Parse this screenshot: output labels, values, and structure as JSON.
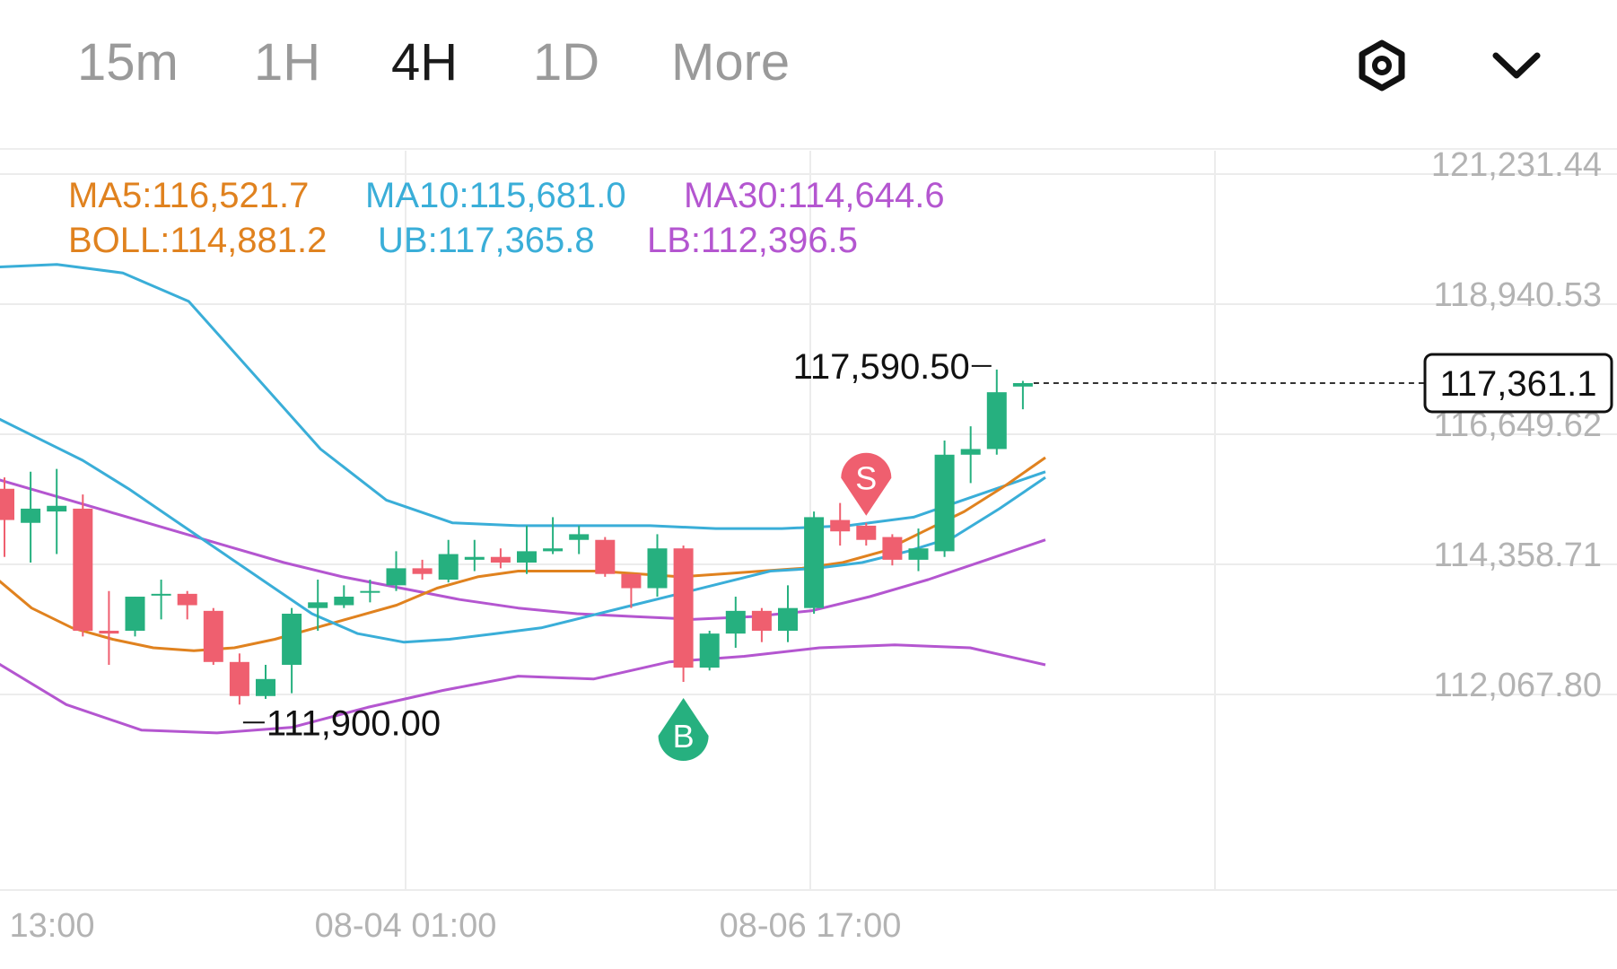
{
  "tabs": [
    {
      "label": "15m",
      "active": false
    },
    {
      "label": "1H",
      "active": false
    },
    {
      "label": "4H",
      "active": true
    },
    {
      "label": "1D",
      "active": false
    },
    {
      "label": "More",
      "active": false
    }
  ],
  "icons": {
    "settings": "gear-hexagon-icon",
    "expand": "chevron-down-icon"
  },
  "legend": {
    "ma5": "MA5:116,521.7",
    "ma10": "MA10:115,681.0",
    "ma30": "MA30:114,644.6",
    "boll": "BOLL:114,881.2",
    "ub": "UB:117,365.8",
    "lb": "LB:112,396.5"
  },
  "colors": {
    "up": "#26b07f",
    "down": "#ef5f6f",
    "ma5": "#e0821f",
    "ma10": "#3aaed8",
    "ma30": "#b456d0",
    "axis_text": "#b3b3b3",
    "grid": "#ececec"
  },
  "chart_data": {
    "type": "candlestick",
    "y_ticks": [
      "121,231.44",
      "118,940.53",
      "116,649.62",
      "114,358.71",
      "112,067.80"
    ],
    "y_tick_values": [
      121231.44,
      118940.53,
      116649.62,
      114358.71,
      112067.8
    ],
    "x_ticks": [
      "13:00",
      "08-04 01:00",
      "08-06 17:00"
    ],
    "current_price": "117,361.1",
    "current_price_value": 117361.1,
    "high_label": "117,590.50",
    "low_label": "111,900.00",
    "signals": [
      {
        "label": "S",
        "type": "sell",
        "candle_index": 33
      },
      {
        "label": "B",
        "type": "buy",
        "candle_index": 26
      }
    ],
    "candles": [
      {
        "o": 115500,
        "c": 114950,
        "h": 115700,
        "l": 114300
      },
      {
        "o": 114900,
        "c": 115150,
        "h": 115800,
        "l": 114200
      },
      {
        "o": 115100,
        "c": 115200,
        "h": 115850,
        "l": 114350
      },
      {
        "o": 115150,
        "c": 113000,
        "h": 115400,
        "l": 112900
      },
      {
        "o": 113000,
        "c": 112950,
        "h": 113700,
        "l": 112400
      },
      {
        "o": 113000,
        "c": 113600,
        "h": 113600,
        "l": 112900
      },
      {
        "o": 113650,
        "c": 113650,
        "h": 113900,
        "l": 113200
      },
      {
        "o": 113650,
        "c": 113450,
        "h": 113700,
        "l": 113200
      },
      {
        "o": 113350,
        "c": 112450,
        "h": 113400,
        "l": 112400
      },
      {
        "o": 112450,
        "c": 111850,
        "h": 112600,
        "l": 111700
      },
      {
        "o": 111850,
        "c": 112150,
        "h": 112400,
        "l": 111800
      },
      {
        "o": 112400,
        "c": 113300,
        "h": 113400,
        "l": 111900
      },
      {
        "o": 113400,
        "c": 113500,
        "h": 113900,
        "l": 113000
      },
      {
        "o": 113450,
        "c": 113600,
        "h": 113800,
        "l": 113400
      },
      {
        "o": 113700,
        "c": 113700,
        "h": 113900,
        "l": 113500
      },
      {
        "o": 113800,
        "c": 114100,
        "h": 114400,
        "l": 113700
      },
      {
        "o": 114100,
        "c": 114000,
        "h": 114250,
        "l": 113900
      },
      {
        "o": 113900,
        "c": 114350,
        "h": 114600,
        "l": 113850
      },
      {
        "o": 114250,
        "c": 114300,
        "h": 114600,
        "l": 114050
      },
      {
        "o": 114300,
        "c": 114200,
        "h": 114450,
        "l": 114100
      },
      {
        "o": 114200,
        "c": 114400,
        "h": 114850,
        "l": 114000
      },
      {
        "o": 114400,
        "c": 114450,
        "h": 115000,
        "l": 114350
      },
      {
        "o": 114600,
        "c": 114700,
        "h": 114850,
        "l": 114350
      },
      {
        "o": 114600,
        "c": 114000,
        "h": 114650,
        "l": 113950
      },
      {
        "o": 114000,
        "c": 113750,
        "h": 114000,
        "l": 113400
      },
      {
        "o": 113750,
        "c": 114450,
        "h": 114700,
        "l": 113600
      },
      {
        "o": 114450,
        "c": 112350,
        "h": 114500,
        "l": 112100
      },
      {
        "o": 112350,
        "c": 112950,
        "h": 113000,
        "l": 112300
      },
      {
        "o": 112950,
        "c": 113350,
        "h": 113600,
        "l": 112700
      },
      {
        "o": 113350,
        "c": 113000,
        "h": 113400,
        "l": 112800
      },
      {
        "o": 113000,
        "c": 113400,
        "h": 113800,
        "l": 112800
      },
      {
        "o": 113400,
        "c": 115000,
        "h": 115100,
        "l": 113300
      },
      {
        "o": 114950,
        "c": 114750,
        "h": 115250,
        "l": 114500
      },
      {
        "o": 114850,
        "c": 114600,
        "h": 114900,
        "l": 114500
      },
      {
        "o": 114650,
        "c": 114250,
        "h": 114700,
        "l": 114150
      },
      {
        "o": 114250,
        "c": 114450,
        "h": 114800,
        "l": 114050
      },
      {
        "o": 114400,
        "c": 116100,
        "h": 116350,
        "l": 114300
      },
      {
        "o": 116100,
        "c": 116200,
        "h": 116600,
        "l": 115600
      },
      {
        "o": 116200,
        "c": 117200,
        "h": 117600,
        "l": 116100
      },
      {
        "o": 117300,
        "c": 117361.1,
        "h": 117400,
        "l": 116900
      }
    ],
    "ma5": [
      114000,
      113400,
      113050,
      112850,
      112700,
      112650,
      112700,
      112850,
      113050,
      113250,
      113450,
      113750,
      113950,
      114050,
      114050,
      114050,
      114000,
      113950,
      114000,
      114050,
      114100,
      114200,
      114400,
      114750,
      115100,
      115550,
      116050
    ],
    "ma10": [
      116800,
      116400,
      116000,
      115500,
      114950,
      114400,
      113850,
      113300,
      112950,
      112800,
      112850,
      112950,
      113050,
      113250,
      113450,
      113650,
      113850,
      114050,
      114100,
      114200,
      114400,
      114650,
      115150,
      115700
    ],
    "ma30": [
      115700,
      115400,
      115100,
      114800,
      114500,
      114200,
      113950,
      113750,
      113550,
      113400,
      113300,
      113250,
      113200,
      113250,
      113350,
      113600,
      113900,
      114250,
      114600
    ],
    "ub": [
      119400,
      119450,
      119300,
      118800,
      117500,
      116200,
      115300,
      114900,
      114850,
      114850,
      114850,
      114800,
      114800,
      114850,
      115000,
      115400,
      115800
    ],
    "lb": [
      112500,
      111700,
      111250,
      111200,
      111300,
      111650,
      111950,
      112200,
      112150,
      112450,
      112550,
      112700,
      112750,
      112700,
      112400
    ]
  }
}
